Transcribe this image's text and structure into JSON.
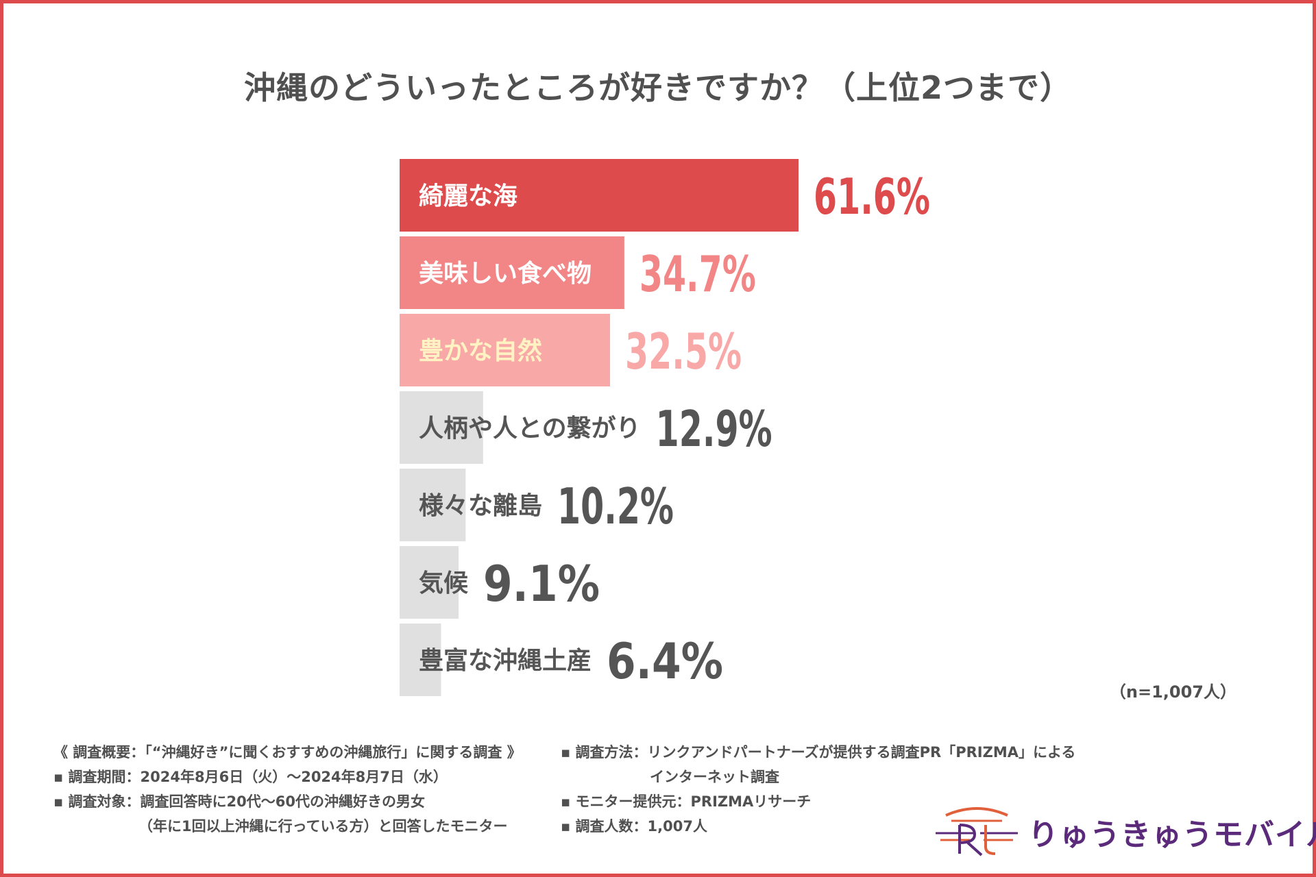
{
  "title": "沖縄のどういったところが好きですか？（上位2つまで）",
  "chart_data": {
    "type": "bar",
    "orientation": "horizontal",
    "categories": [
      "綺麗な海",
      "美味しい食べ物",
      "豊かな自然",
      "人柄や人との繋がり",
      "様々な離島",
      "気候",
      "豊富な沖縄土産"
    ],
    "values": [
      61.6,
      34.7,
      32.5,
      12.9,
      10.2,
      9.1,
      6.4
    ],
    "value_labels": [
      "61.6%",
      "34.7%",
      "32.5%",
      "12.9%",
      "10.2%",
      "9.1%",
      "6.4%"
    ],
    "bar_colors": [
      "#dd4b4c",
      "#f28585",
      "#f9a8a8",
      "#e0e0e0",
      "#e0e0e0",
      "#e0e0e0",
      "#e0e0e0"
    ],
    "label_colors": [
      "#ffffff",
      "#ffffff",
      "#fff3c4",
      "#555555",
      "#555555",
      "#555555",
      "#555555"
    ],
    "value_colors": [
      "#dd4b4c",
      "#f28585",
      "#f9a8a8",
      "#555555",
      "#555555",
      "#555555",
      "#555555"
    ],
    "unit": "%"
  },
  "sample_note": "（n=1,007人）",
  "notes_left": [
    "《 調査概要：「“沖縄好き”に聞くおすすめの沖縄旅行」に関する調査 》",
    "▪ 調査期間：2024年8月6日（火）～2024年8月7日（水）",
    "▪ 調査対象：調査回答時に20代～60代の沖縄好きの男女",
    "（年に1回以上沖縄に行っている方）と回答したモニター"
  ],
  "notes_right": [
    "▪ 調査方法：リンクアンドパートナーズが提供する調査PR「PRIZMA」による",
    "インターネット調査",
    "▪ モニター提供元：PRIZMAリサーチ",
    "▪ 調査人数：1,007人"
  ],
  "logo": {
    "text": "りゅうきゅうモバイル",
    "color": "#5b2a7a",
    "accent": "#e0603c"
  },
  "frame_color": "#dd4b4c"
}
